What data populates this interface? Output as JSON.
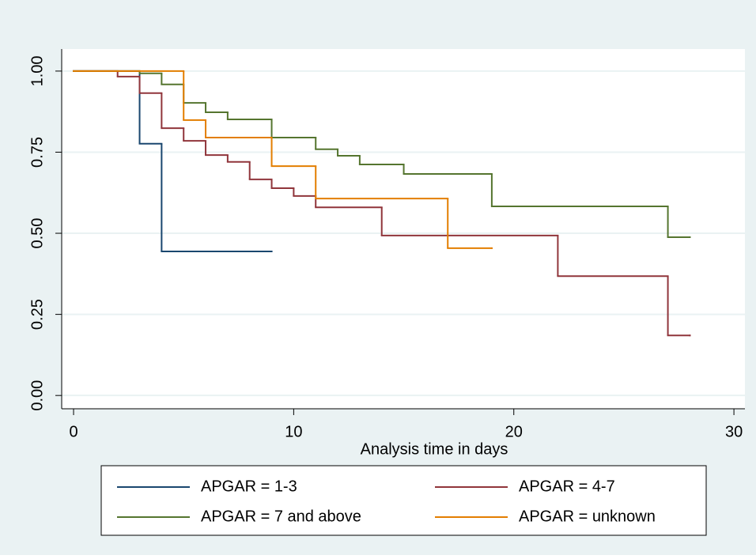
{
  "chart_data": {
    "type": "step",
    "xlabel": "Analysis time in days",
    "xlim": [
      -0.54,
      30.5
    ],
    "xticks": [
      0,
      10,
      20,
      30
    ],
    "ylim": [
      -0.041,
      1.068
    ],
    "yticks": [
      {
        "value": 0,
        "label": "0.00"
      },
      {
        "value": 0.25,
        "label": "0.25"
      },
      {
        "value": 0.5,
        "label": "0.50"
      },
      {
        "value": 0.75,
        "label": "0.75"
      },
      {
        "value": 1,
        "label": "1.00"
      }
    ],
    "grid": true,
    "legend": "bottom",
    "series": [
      {
        "name": "APGAR = 1-3",
        "color": "#1a476f",
        "x": [
          0,
          3,
          4,
          9
        ],
        "values": [
          1,
          0.776,
          0.444,
          0.444
        ]
      },
      {
        "name": "APGAR = 4-7",
        "color": "#90353b",
        "x": [
          0,
          2,
          3,
          4,
          5,
          6,
          7,
          8,
          9,
          10,
          11,
          14,
          22,
          27,
          28
        ],
        "values": [
          1,
          0.983,
          0.932,
          0.824,
          0.785,
          0.741,
          0.72,
          0.666,
          0.639,
          0.615,
          0.58,
          0.493,
          0.368,
          0.185,
          0.185
        ]
      },
      {
        "name": "APGAR = 7 and above",
        "color": "#55752f",
        "x": [
          0,
          3,
          4,
          5,
          6,
          7,
          9,
          11,
          12,
          13,
          15,
          19,
          27,
          28
        ],
        "values": [
          1,
          0.993,
          0.959,
          0.902,
          0.873,
          0.851,
          0.795,
          0.759,
          0.739,
          0.712,
          0.683,
          0.583,
          0.488,
          0.488
        ]
      },
      {
        "name": "APGAR = unknown",
        "color": "#e37e00",
        "x": [
          0,
          5,
          6,
          9,
          11,
          17,
          19
        ],
        "values": [
          1,
          0.849,
          0.795,
          0.707,
          0.607,
          0.454,
          0.454
        ]
      }
    ]
  }
}
